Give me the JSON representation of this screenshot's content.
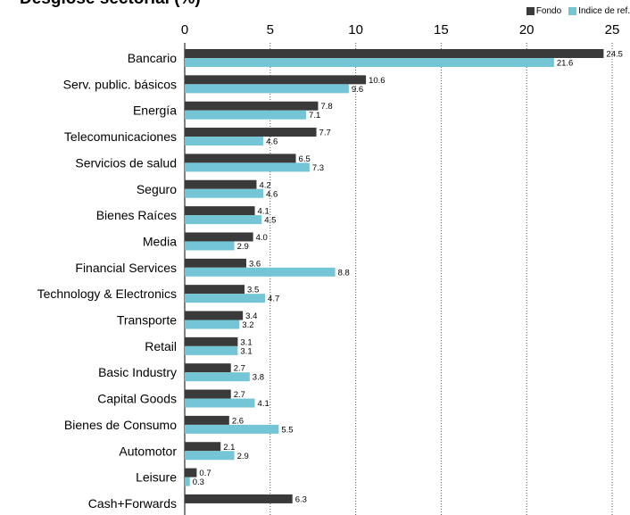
{
  "chart_data": {
    "type": "bar",
    "orientation": "horizontal",
    "title": "Desglose sectorial (%)",
    "xlim": [
      0,
      25
    ],
    "xticks": [
      0,
      5,
      10,
      15,
      20,
      25
    ],
    "grid": "dotted vertical",
    "legend_position": "top-right",
    "categories": [
      "Bancario",
      "Serv. public. básicos",
      "Energía",
      "Telecomunicaciones",
      "Servicios de salud",
      "Seguro",
      "Bienes Raíces",
      "Media",
      "Financial Services",
      "Technology & Electronics",
      "Transporte",
      "Retail",
      "Basic Industry",
      "Capital Goods",
      "Bienes de Consumo",
      "Automotor",
      "Leisure",
      "Cash+Forwards"
    ],
    "series": [
      {
        "name": "Fondo",
        "color": "#3a3a3a",
        "values": [
          24.5,
          10.6,
          7.8,
          7.7,
          6.5,
          4.2,
          4.1,
          4.0,
          3.6,
          3.5,
          3.4,
          3.1,
          2.7,
          2.7,
          2.6,
          2.1,
          0.7,
          6.3
        ],
        "labels": [
          "24.5",
          "10.6",
          "7.8",
          "7.7",
          "6.5",
          "4.2",
          "4.1",
          "4.0",
          "3.6",
          "3.5",
          "3.4",
          "3.1",
          "2.7",
          "2.7",
          "2.6",
          "2.1",
          "0.7",
          "6.3"
        ]
      },
      {
        "name": "Indice de ref.",
        "color": "#74c5d6",
        "values": [
          21.6,
          9.6,
          7.1,
          4.6,
          7.3,
          4.6,
          4.5,
          2.9,
          8.8,
          4.7,
          3.2,
          3.1,
          3.8,
          4.1,
          5.5,
          2.9,
          0.3,
          null
        ],
        "labels": [
          "21.6",
          "9.6",
          "7.1",
          "4.6",
          "7.3",
          "4.6",
          "4.5",
          "2.9",
          "8.8",
          "4.7",
          "3.2",
          "3.1",
          "3.8",
          "4.1",
          "5.5",
          "2.9",
          "0.3",
          ""
        ]
      }
    ]
  }
}
